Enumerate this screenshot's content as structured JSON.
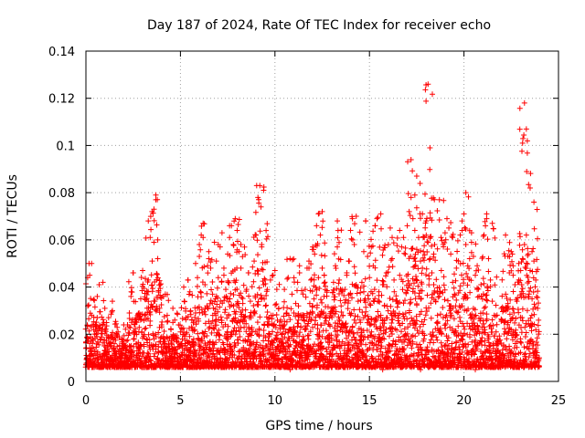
{
  "chart_data": {
    "type": "scatter",
    "title": "Day 187 of 2024, Rate Of TEC Index for receiver echo",
    "xlabel": "GPS time / hours",
    "ylabel": "ROTI / TECUs",
    "xlim": [
      0,
      25
    ],
    "ylim": [
      0,
      0.14
    ],
    "x_ticks": [
      0,
      5,
      10,
      15,
      20,
      25
    ],
    "x_tick_labels": [
      "0",
      "5",
      "10",
      "15",
      "20",
      "25"
    ],
    "y_ticks": [
      0,
      0.02,
      0.04,
      0.06,
      0.08,
      0.1,
      0.12,
      0.14
    ],
    "y_tick_labels": [
      "0",
      "0.02",
      "0.04",
      "0.06",
      "0.08",
      "0.1",
      "0.12",
      "0.14"
    ],
    "grid": true,
    "marker": "plus",
    "color": "#ff0000",
    "series": [
      {
        "name": "ROTI",
        "x": [
          0.0,
          0.1,
          0.2,
          0.3,
          0.4,
          0.5,
          0.6,
          0.7,
          0.8,
          0.9,
          1.0,
          1.1,
          1.2,
          1.3,
          1.4,
          1.5,
          1.6,
          1.7,
          1.8,
          1.9,
          2.0,
          2.1,
          2.2,
          2.3,
          2.4,
          2.5,
          2.6,
          2.7,
          2.8,
          2.9,
          3.0,
          3.1,
          3.2,
          3.3,
          3.4,
          3.5,
          3.6,
          3.7,
          3.8,
          3.9,
          4.0,
          4.1,
          4.2,
          4.3,
          4.4,
          4.5,
          4.6,
          4.7,
          4.8,
          4.9,
          5.0,
          5.1,
          5.2,
          5.3,
          5.4,
          5.5,
          5.6,
          5.7,
          5.8,
          5.9,
          6.0,
          6.1,
          6.2,
          6.3,
          6.4,
          6.5,
          6.6,
          6.7,
          6.8,
          6.9,
          7.0,
          7.1,
          7.2,
          7.3,
          7.4,
          7.5,
          7.6,
          7.7,
          7.8,
          7.9,
          8.0,
          8.1,
          8.2,
          8.3,
          8.4,
          8.5,
          8.6,
          8.7,
          8.8,
          8.9,
          9.0,
          9.1,
          9.2,
          9.3,
          9.4,
          9.5,
          9.6,
          9.7,
          9.8,
          9.9,
          10.0,
          10.1,
          10.2,
          10.3,
          10.4,
          10.5,
          10.6,
          10.7,
          10.8,
          10.9,
          11.0,
          11.1,
          11.2,
          11.3,
          11.4,
          11.5,
          11.6,
          11.7,
          11.8,
          11.9,
          12.0,
          12.1,
          12.2,
          12.3,
          12.4,
          12.5,
          12.6,
          12.7,
          12.8,
          12.9,
          13.0,
          13.1,
          13.2,
          13.3,
          13.4,
          13.5,
          13.6,
          13.7,
          13.8,
          13.9,
          14.0,
          14.1,
          14.2,
          14.3,
          14.4,
          14.5,
          14.6,
          14.7,
          14.8,
          14.9,
          15.0,
          15.1,
          15.2,
          15.3,
          15.4,
          15.5,
          15.6,
          15.7,
          15.8,
          15.9,
          16.0,
          16.1,
          16.2,
          16.3,
          16.4,
          16.5,
          16.6,
          16.7,
          16.8,
          16.9,
          17.0,
          17.1,
          17.2,
          17.3,
          17.4,
          17.5,
          17.6,
          17.7,
          17.8,
          17.9,
          18.0,
          18.1,
          18.2,
          18.3,
          18.4,
          18.5,
          18.6,
          18.7,
          18.8,
          18.9,
          19.0,
          19.1,
          19.2,
          19.3,
          19.4,
          19.5,
          19.6,
          19.7,
          19.8,
          19.9,
          20.0,
          20.1,
          20.2,
          20.3,
          20.4,
          20.5,
          20.6,
          20.7,
          20.8,
          20.9,
          21.0,
          21.1,
          21.2,
          21.3,
          21.4,
          21.5,
          21.6,
          21.7,
          21.8,
          21.9,
          22.0,
          22.1,
          22.2,
          22.3,
          22.4,
          22.5,
          22.6,
          22.7,
          22.8,
          22.9,
          23.0,
          23.1,
          23.2,
          23.3,
          23.4,
          23.5,
          23.6,
          23.7,
          23.8,
          23.9,
          0.3,
          0.9,
          1.4,
          2.0,
          2.5,
          3.3,
          3.6,
          3.7,
          3.8,
          4.1,
          4.6,
          5.4,
          6.0,
          6.2,
          6.5,
          7.0,
          7.3,
          7.6,
          7.9,
          8.2,
          8.6,
          9.3,
          9.4,
          9.9,
          10.5,
          11.3,
          11.8,
          12.3,
          12.5,
          13.3,
          13.8,
          14.3,
          14.8,
          15.3,
          15.6,
          16.2,
          16.6,
          17.2,
          17.4,
          17.8,
          18.1,
          18.2,
          18.4,
          18.7,
          19.4,
          19.9,
          20.1,
          20.4,
          20.7,
          21.2,
          21.5,
          22.2,
          22.6,
          22.9,
          23.1,
          23.2,
          23.3,
          23.5,
          23.7,
          17.5,
          0.2,
          0.7,
          1.8,
          2.7,
          3.2,
          4.5,
          5.7,
          6.8,
          7.7,
          8.8,
          9.7,
          10.8,
          11.6,
          12.7,
          13.6,
          14.6,
          15.7,
          16.7,
          17.7,
          18.9,
          19.6,
          20.6,
          21.6,
          22.4,
          23.4,
          0.05,
          1.1,
          2.3,
          3.4,
          4.3,
          5.2,
          6.4,
          7.5,
          8.4,
          9.6,
          10.7,
          11.4,
          12.8,
          13.5,
          14.4
        ],
        "y": [
          0.014,
          0.032,
          0.045,
          0.028,
          0.011,
          0.022,
          0.036,
          0.041,
          0.018,
          0.024,
          0.031,
          0.012,
          0.027,
          0.019,
          0.034,
          0.016,
          0.009,
          0.021,
          0.013,
          0.018,
          0.015,
          0.011,
          0.024,
          0.029,
          0.038,
          0.046,
          0.026,
          0.013,
          0.021,
          0.035,
          0.047,
          0.028,
          0.018,
          0.043,
          0.061,
          0.072,
          0.059,
          0.079,
          0.052,
          0.031,
          0.024,
          0.019,
          0.037,
          0.028,
          0.015,
          0.022,
          0.031,
          0.026,
          0.017,
          0.024,
          0.021,
          0.018,
          0.034,
          0.027,
          0.043,
          0.038,
          0.026,
          0.018,
          0.029,
          0.044,
          0.053,
          0.062,
          0.067,
          0.041,
          0.032,
          0.055,
          0.048,
          0.037,
          0.059,
          0.051,
          0.044,
          0.057,
          0.063,
          0.048,
          0.039,
          0.054,
          0.061,
          0.066,
          0.058,
          0.042,
          0.064,
          0.055,
          0.048,
          0.033,
          0.027,
          0.039,
          0.046,
          0.034,
          0.021,
          0.051,
          0.062,
          0.078,
          0.083,
          0.058,
          0.041,
          0.032,
          0.024,
          0.019,
          0.028,
          0.045,
          0.047,
          0.039,
          0.031,
          0.026,
          0.018,
          0.024,
          0.029,
          0.044,
          0.052,
          0.037,
          0.029,
          0.033,
          0.042,
          0.046,
          0.027,
          0.019,
          0.039,
          0.048,
          0.051,
          0.043,
          0.032,
          0.054,
          0.066,
          0.071,
          0.062,
          0.048,
          0.036,
          0.027,
          0.019,
          0.024,
          0.031,
          0.042,
          0.049,
          0.057,
          0.043,
          0.032,
          0.028,
          0.039,
          0.045,
          0.051,
          0.064,
          0.069,
          0.058,
          0.041,
          0.034,
          0.026,
          0.042,
          0.055,
          0.068,
          0.053,
          0.044,
          0.057,
          0.049,
          0.066,
          0.069,
          0.038,
          0.027,
          0.041,
          0.032,
          0.046,
          0.058,
          0.065,
          0.052,
          0.043,
          0.034,
          0.028,
          0.045,
          0.057,
          0.061,
          0.054,
          0.066,
          0.072,
          0.078,
          0.069,
          0.064,
          0.056,
          0.061,
          0.051,
          0.048,
          0.061,
          0.068,
          0.059,
          0.052,
          0.046,
          0.041,
          0.034,
          0.028,
          0.036,
          0.047,
          0.058,
          0.063,
          0.069,
          0.065,
          0.054,
          0.042,
          0.037,
          0.048,
          0.051,
          0.062,
          0.064,
          0.071,
          0.058,
          0.049,
          0.052,
          0.063,
          0.053,
          0.045,
          0.039,
          0.036,
          0.041,
          0.029,
          0.022,
          0.069,
          0.052,
          0.043,
          0.034,
          0.028,
          0.021,
          0.016,
          0.012,
          0.011,
          0.015,
          0.021,
          0.031,
          0.046,
          0.055,
          0.049,
          0.041,
          0.034,
          0.043,
          0.047,
          0.052,
          0.058,
          0.062,
          0.054,
          0.047,
          0.055,
          0.051,
          0.043,
          0.031,
          0.05,
          0.042,
          0.03,
          0.024,
          0.046,
          0.068,
          0.073,
          0.077,
          0.06,
          0.036,
          0.025,
          0.043,
          0.058,
          0.061,
          0.052,
          0.058,
          0.045,
          0.066,
          0.069,
          0.058,
          0.046,
          0.057,
          0.081,
          0.028,
          0.039,
          0.049,
          0.048,
          0.044,
          0.072,
          0.068,
          0.046,
          0.07,
          0.068,
          0.066,
          0.071,
          0.061,
          0.064,
          0.094,
          0.079,
          0.071,
          0.126,
          0.099,
          0.054,
          0.077,
          0.061,
          0.068,
          0.08,
          0.059,
          0.049,
          0.071,
          0.067,
          0.062,
          0.045,
          0.05,
          0.101,
          0.118,
          0.107,
          0.082,
          0.076,
          0.087,
          0.008,
          0.007,
          0.006,
          0.007,
          0.008,
          0.007,
          0.006,
          0.008,
          0.007,
          0.006,
          0.006,
          0.005,
          0.007,
          0.006,
          0.007,
          0.006,
          0.005,
          0.006,
          0.005,
          0.006,
          0.006,
          0.005,
          0.006,
          0.007,
          0.007,
          0.01,
          0.009,
          0.01,
          0.009,
          0.01,
          0.009,
          0.01,
          0.009,
          0.01,
          0.009,
          0.009,
          0.01,
          0.009,
          0.01,
          0.009
        ]
      }
    ]
  }
}
